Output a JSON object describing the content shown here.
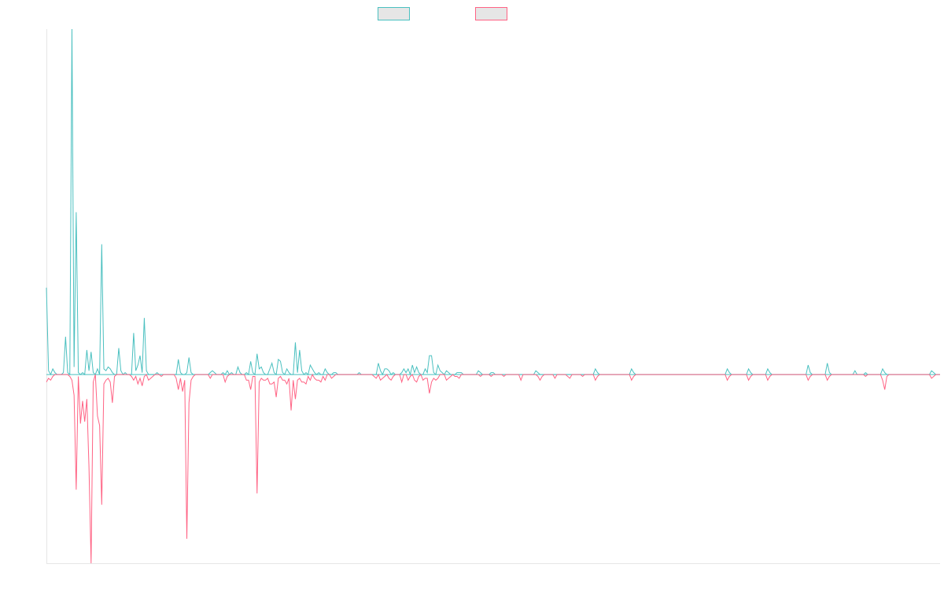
{
  "chart_data": {
    "type": "line",
    "title": "",
    "xlabel": "",
    "ylabel": "",
    "grid": false,
    "legend_position": "top-center",
    "xlim": [
      0,
      420
    ],
    "ylim": [
      -100,
      183
    ],
    "colors": {
      "positive": "#4bc0c0",
      "negative": "#ff6384",
      "axis": "#e6e6e6",
      "legend_fill": "#e6e6e6"
    },
    "series": [
      {
        "values_sparse": [
          [
            0,
            46
          ],
          [
            1,
            2
          ],
          [
            3,
            3
          ],
          [
            4,
            1
          ],
          [
            8,
            1
          ],
          [
            9,
            20
          ],
          [
            10,
            1
          ],
          [
            12,
            183
          ],
          [
            13,
            4
          ],
          [
            14,
            86
          ],
          [
            15,
            1
          ],
          [
            17,
            1
          ],
          [
            19,
            13
          ],
          [
            20,
            2
          ],
          [
            21,
            12
          ],
          [
            22,
            1
          ],
          [
            24,
            3
          ],
          [
            26,
            69
          ],
          [
            27,
            3
          ],
          [
            28,
            2
          ],
          [
            29,
            4
          ],
          [
            30,
            3
          ],
          [
            31,
            1
          ],
          [
            34,
            14
          ],
          [
            35,
            2
          ],
          [
            37,
            1
          ],
          [
            41,
            22
          ],
          [
            42,
            2
          ],
          [
            43,
            5
          ],
          [
            44,
            10
          ],
          [
            45,
            1
          ],
          [
            46,
            30
          ],
          [
            47,
            2
          ],
          [
            52,
            1
          ],
          [
            62,
            8
          ],
          [
            63,
            1
          ],
          [
            66,
            1
          ],
          [
            67,
            9
          ],
          [
            68,
            1
          ],
          [
            77,
            1
          ],
          [
            78,
            2
          ],
          [
            79,
            1
          ],
          [
            83,
            1
          ],
          [
            85,
            2
          ],
          [
            87,
            1
          ],
          [
            90,
            4
          ],
          [
            91,
            1
          ],
          [
            94,
            1
          ],
          [
            96,
            7
          ],
          [
            97,
            1
          ],
          [
            99,
            11
          ],
          [
            100,
            3
          ],
          [
            101,
            4
          ],
          [
            102,
            1
          ],
          [
            105,
            3
          ],
          [
            106,
            6
          ],
          [
            107,
            1
          ],
          [
            109,
            8
          ],
          [
            110,
            7
          ],
          [
            111,
            1
          ],
          [
            113,
            3
          ],
          [
            114,
            1
          ],
          [
            117,
            17
          ],
          [
            118,
            1
          ],
          [
            119,
            13
          ],
          [
            120,
            2
          ],
          [
            122,
            1
          ],
          [
            124,
            5
          ],
          [
            125,
            3
          ],
          [
            126,
            1
          ],
          [
            128,
            1
          ],
          [
            131,
            3
          ],
          [
            132,
            1
          ],
          [
            135,
            1
          ],
          [
            136,
            1
          ],
          [
            147,
            1
          ],
          [
            156,
            6
          ],
          [
            157,
            2
          ],
          [
            159,
            3
          ],
          [
            160,
            3
          ],
          [
            161,
            2
          ],
          [
            163,
            1
          ],
          [
            167,
            1
          ],
          [
            168,
            3
          ],
          [
            169,
            1
          ],
          [
            170,
            3
          ],
          [
            172,
            5
          ],
          [
            173,
            1
          ],
          [
            174,
            4
          ],
          [
            175,
            1
          ],
          [
            178,
            3
          ],
          [
            179,
            1
          ],
          [
            180,
            10
          ],
          [
            181,
            10
          ],
          [
            182,
            1
          ],
          [
            184,
            5
          ],
          [
            185,
            2
          ],
          [
            186,
            1
          ],
          [
            188,
            2
          ],
          [
            189,
            1
          ],
          [
            193,
            1
          ],
          [
            194,
            1
          ],
          [
            195,
            1
          ],
          [
            203,
            2
          ],
          [
            204,
            1
          ],
          [
            209,
            1
          ],
          [
            210,
            1
          ],
          [
            230,
            2
          ],
          [
            231,
            1
          ],
          [
            258,
            3
          ],
          [
            259,
            1
          ],
          [
            275,
            3
          ],
          [
            276,
            1
          ],
          [
            320,
            3
          ],
          [
            321,
            1
          ],
          [
            330,
            3
          ],
          [
            331,
            1
          ],
          [
            339,
            3
          ],
          [
            340,
            1
          ],
          [
            358,
            5
          ],
          [
            359,
            1
          ],
          [
            367,
            6
          ],
          [
            368,
            1
          ],
          [
            380,
            2
          ],
          [
            385,
            1
          ],
          [
            393,
            3
          ],
          [
            394,
            1
          ],
          [
            416,
            2
          ],
          [
            417,
            1
          ]
        ]
      },
      {
        "values_sparse": [
          [
            0,
            -4
          ],
          [
            1,
            -2
          ],
          [
            2,
            -3
          ],
          [
            3,
            -1
          ],
          [
            11,
            -1
          ],
          [
            12,
            -3
          ],
          [
            13,
            -11
          ],
          [
            14,
            -61
          ],
          [
            15,
            -1
          ],
          [
            16,
            -26
          ],
          [
            17,
            -14
          ],
          [
            18,
            -25
          ],
          [
            19,
            -13
          ],
          [
            20,
            -49
          ],
          [
            21,
            -100
          ],
          [
            22,
            -4
          ],
          [
            24,
            -22
          ],
          [
            25,
            -27
          ],
          [
            26,
            -69
          ],
          [
            27,
            -5
          ],
          [
            28,
            -3
          ],
          [
            29,
            -2
          ],
          [
            30,
            -4
          ],
          [
            31,
            -15
          ],
          [
            32,
            -1
          ],
          [
            40,
            -1
          ],
          [
            41,
            -3
          ],
          [
            42,
            -1
          ],
          [
            43,
            -5
          ],
          [
            44,
            -2
          ],
          [
            45,
            -6
          ],
          [
            46,
            -1
          ],
          [
            48,
            -3
          ],
          [
            49,
            -2
          ],
          [
            50,
            -1
          ],
          [
            54,
            -1
          ],
          [
            61,
            -2
          ],
          [
            62,
            -8
          ],
          [
            63,
            -2
          ],
          [
            64,
            -9
          ],
          [
            65,
            -3
          ],
          [
            66,
            -87
          ],
          [
            67,
            -15
          ],
          [
            68,
            -3
          ],
          [
            69,
            -1
          ],
          [
            77,
            -2
          ],
          [
            84,
            -4
          ],
          [
            85,
            -1
          ],
          [
            94,
            -3
          ],
          [
            95,
            -3
          ],
          [
            96,
            -8
          ],
          [
            97,
            -1
          ],
          [
            98,
            -1
          ],
          [
            99,
            -63
          ],
          [
            100,
            -4
          ],
          [
            101,
            -2
          ],
          [
            102,
            -3
          ],
          [
            103,
            -3
          ],
          [
            104,
            -2
          ],
          [
            105,
            -5
          ],
          [
            106,
            -5
          ],
          [
            107,
            -4
          ],
          [
            108,
            -12
          ],
          [
            109,
            -2
          ],
          [
            110,
            -1
          ],
          [
            111,
            -3
          ],
          [
            112,
            -3
          ],
          [
            113,
            -5
          ],
          [
            114,
            -2
          ],
          [
            115,
            -19
          ],
          [
            116,
            -3
          ],
          [
            117,
            -13
          ],
          [
            118,
            -3
          ],
          [
            119,
            -2
          ],
          [
            120,
            -4
          ],
          [
            121,
            -4
          ],
          [
            122,
            -5
          ],
          [
            123,
            -1
          ],
          [
            124,
            -3
          ],
          [
            126,
            -2
          ],
          [
            127,
            -3
          ],
          [
            128,
            -3
          ],
          [
            129,
            -4
          ],
          [
            130,
            -1
          ],
          [
            131,
            -3
          ],
          [
            134,
            -2
          ],
          [
            135,
            -1
          ],
          [
            154,
            -1
          ],
          [
            155,
            -2
          ],
          [
            157,
            -3
          ],
          [
            158,
            -2
          ],
          [
            159,
            -1
          ],
          [
            161,
            -2
          ],
          [
            162,
            -3
          ],
          [
            163,
            -1
          ],
          [
            167,
            -4
          ],
          [
            170,
            -3
          ],
          [
            171,
            -1
          ],
          [
            173,
            -3
          ],
          [
            174,
            -4
          ],
          [
            175,
            -1
          ],
          [
            177,
            -3
          ],
          [
            178,
            -2
          ],
          [
            179,
            -2
          ],
          [
            180,
            -10
          ],
          [
            181,
            -4
          ],
          [
            182,
            -2
          ],
          [
            183,
            -3
          ],
          [
            184,
            -2
          ],
          [
            188,
            -3
          ],
          [
            189,
            -2
          ],
          [
            190,
            -1
          ],
          [
            192,
            -1
          ],
          [
            193,
            -1
          ],
          [
            194,
            -2
          ],
          [
            204,
            -1
          ],
          [
            209,
            -1
          ],
          [
            215,
            -1
          ],
          [
            223,
            -3
          ],
          [
            231,
            -1
          ],
          [
            232,
            -3
          ],
          [
            233,
            -1
          ],
          [
            239,
            -2
          ],
          [
            245,
            -1
          ],
          [
            246,
            -2
          ],
          [
            252,
            -1
          ],
          [
            258,
            -3
          ],
          [
            259,
            -1
          ],
          [
            275,
            -3
          ],
          [
            276,
            -1
          ],
          [
            320,
            -3
          ],
          [
            321,
            -1
          ],
          [
            330,
            -3
          ],
          [
            331,
            -1
          ],
          [
            339,
            -3
          ],
          [
            340,
            -1
          ],
          [
            358,
            -3
          ],
          [
            359,
            -1
          ],
          [
            367,
            -3
          ],
          [
            368,
            -1
          ],
          [
            385,
            -1
          ],
          [
            393,
            -3
          ],
          [
            394,
            -8
          ],
          [
            395,
            -1
          ],
          [
            416,
            -2
          ],
          [
            417,
            -1
          ]
        ]
      }
    ]
  }
}
